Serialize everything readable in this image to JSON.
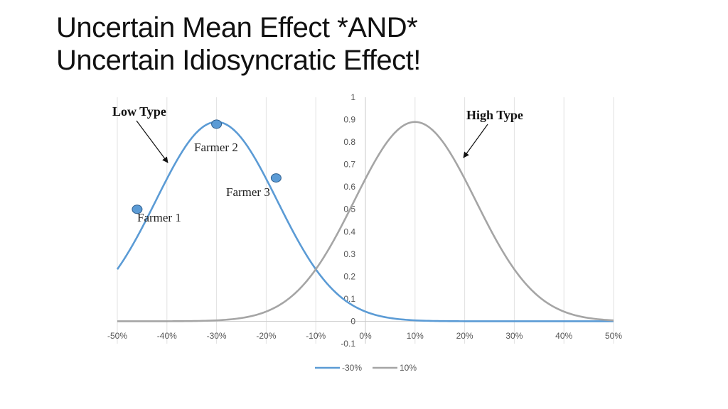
{
  "slide": {
    "title_line1": "Uncertain Mean Effect *AND*",
    "title_line2": "Uncertain Idiosyncratic Effect!"
  },
  "chart_data": {
    "type": "line",
    "x_ticks": [
      "-50%",
      "-40%",
      "-30%",
      "-20%",
      "-10%",
      "0%",
      "10%",
      "20%",
      "30%",
      "40%",
      "50%"
    ],
    "y_ticks": [
      "1",
      "0.9",
      "0.8",
      "0.7",
      "0.6",
      "0.5",
      "0.4",
      "0.3",
      "0.2",
      "0.1",
      "0",
      "-0.1"
    ],
    "xlim": [
      -0.5,
      0.5
    ],
    "ylim": [
      -0.1,
      1.0
    ],
    "grid": "vertical",
    "legend_position": "bottom",
    "series": [
      {
        "name": "-30%",
        "color": "#5b9bd5",
        "mean": -0.3,
        "x": [
          -0.5,
          -0.45,
          -0.4,
          -0.35,
          -0.3,
          -0.25,
          -0.2,
          -0.15,
          -0.1,
          -0.05,
          0.0,
          0.05,
          0.1,
          0.15,
          0.2,
          0.25,
          0.3,
          0.35,
          0.4,
          0.45,
          0.5
        ],
        "y": [
          0.36,
          0.53,
          0.71,
          0.84,
          0.89,
          0.84,
          0.71,
          0.53,
          0.36,
          0.22,
          0.12,
          0.06,
          0.025,
          0.01,
          0.004,
          0.001,
          0.0,
          0.0,
          0.0,
          0.0,
          0.0
        ]
      },
      {
        "name": "10%",
        "color": "#a5a5a5",
        "mean": 0.1,
        "x": [
          -0.5,
          -0.45,
          -0.4,
          -0.35,
          -0.3,
          -0.25,
          -0.2,
          -0.15,
          -0.1,
          -0.05,
          0.0,
          0.05,
          0.1,
          0.15,
          0.2,
          0.25,
          0.3,
          0.35,
          0.4,
          0.45,
          0.5
        ],
        "y": [
          0.0,
          0.001,
          0.004,
          0.01,
          0.025,
          0.06,
          0.12,
          0.22,
          0.36,
          0.53,
          0.71,
          0.84,
          0.89,
          0.84,
          0.71,
          0.53,
          0.36,
          0.22,
          0.12,
          0.06,
          0.025
        ]
      }
    ],
    "markers": [
      {
        "label": "Farmer 1",
        "x": -0.46,
        "y": 0.5
      },
      {
        "label": "Farmer 2",
        "x": -0.3,
        "y": 0.88
      },
      {
        "label": "Farmer 3",
        "x": -0.18,
        "y": 0.64
      }
    ],
    "annotations": [
      {
        "text": "Low Type",
        "points_to_series": "-30%"
      },
      {
        "text": "High Type",
        "points_to_series": "10%"
      }
    ]
  }
}
